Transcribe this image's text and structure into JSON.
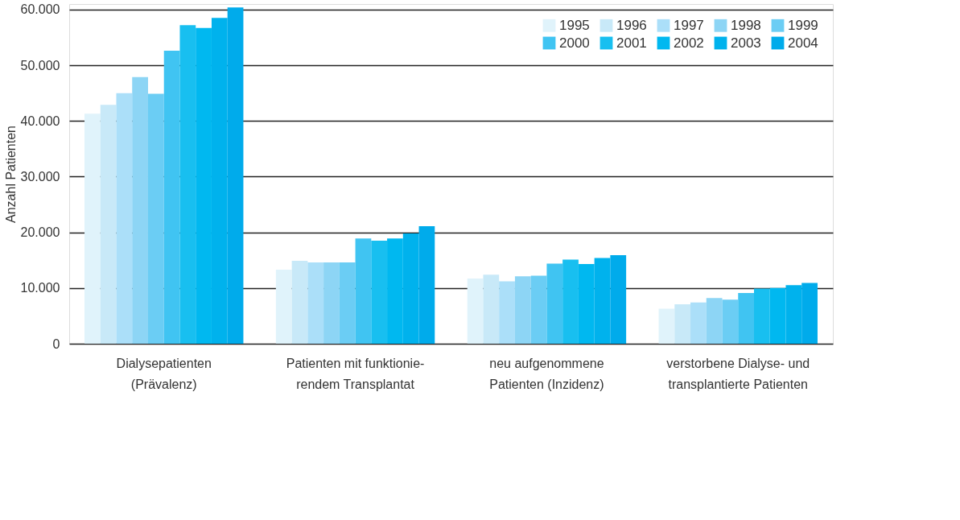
{
  "chart_data": {
    "type": "bar",
    "ylabel": "Anzahl Patienten",
    "categories": [
      "Dialysepatienten\n(Prävalenz)",
      "Patienten mit funktionie-\nrendem Transplantat",
      "neu aufgenommene\nPatienten (Inzidenz)",
      "verstorbene Dialyse- und\ntransplantierte Patienten"
    ],
    "series": [
      {
        "name": "1995",
        "color": "#e0f3fb",
        "values": [
          41300,
          13300,
          11700,
          6300
        ]
      },
      {
        "name": "1996",
        "color": "#c8e9f8",
        "values": [
          42900,
          14900,
          12400,
          7100
        ]
      },
      {
        "name": "1997",
        "color": "#abdff9",
        "values": [
          45000,
          14600,
          11200,
          7400
        ]
      },
      {
        "name": "1998",
        "color": "#8dd5f5",
        "values": [
          47900,
          14600,
          12100,
          8200
        ]
      },
      {
        "name": "1999",
        "color": "#6bcdf4",
        "values": [
          44900,
          14600,
          12200,
          7900
        ]
      },
      {
        "name": "2000",
        "color": "#40c4f2",
        "values": [
          52600,
          18900,
          14400,
          9100
        ]
      },
      {
        "name": "2001",
        "color": "#18bff0",
        "values": [
          57200,
          18500,
          15100,
          9900
        ]
      },
      {
        "name": "2002",
        "color": "#00b8f0",
        "values": [
          56700,
          18900,
          14300,
          10000
        ]
      },
      {
        "name": "2003",
        "color": "#00b2ed",
        "values": [
          58500,
          19800,
          15400,
          10500
        ]
      },
      {
        "name": "2004",
        "color": "#00abeb",
        "values": [
          60400,
          21100,
          15900,
          10900
        ]
      }
    ],
    "ylim": [
      0,
      61000
    ],
    "yticks": [
      0,
      {
        "value": 10000,
        "label": "10.000"
      },
      {
        "value": 20000,
        "label": "20.000"
      },
      {
        "value": 30000,
        "label": "30.000"
      },
      {
        "value": 40000,
        "label": "40.000"
      },
      {
        "value": 50000,
        "label": "50.000"
      },
      {
        "value": 60000,
        "label": "60.000"
      }
    ],
    "grid": "y",
    "legend": "top right"
  }
}
